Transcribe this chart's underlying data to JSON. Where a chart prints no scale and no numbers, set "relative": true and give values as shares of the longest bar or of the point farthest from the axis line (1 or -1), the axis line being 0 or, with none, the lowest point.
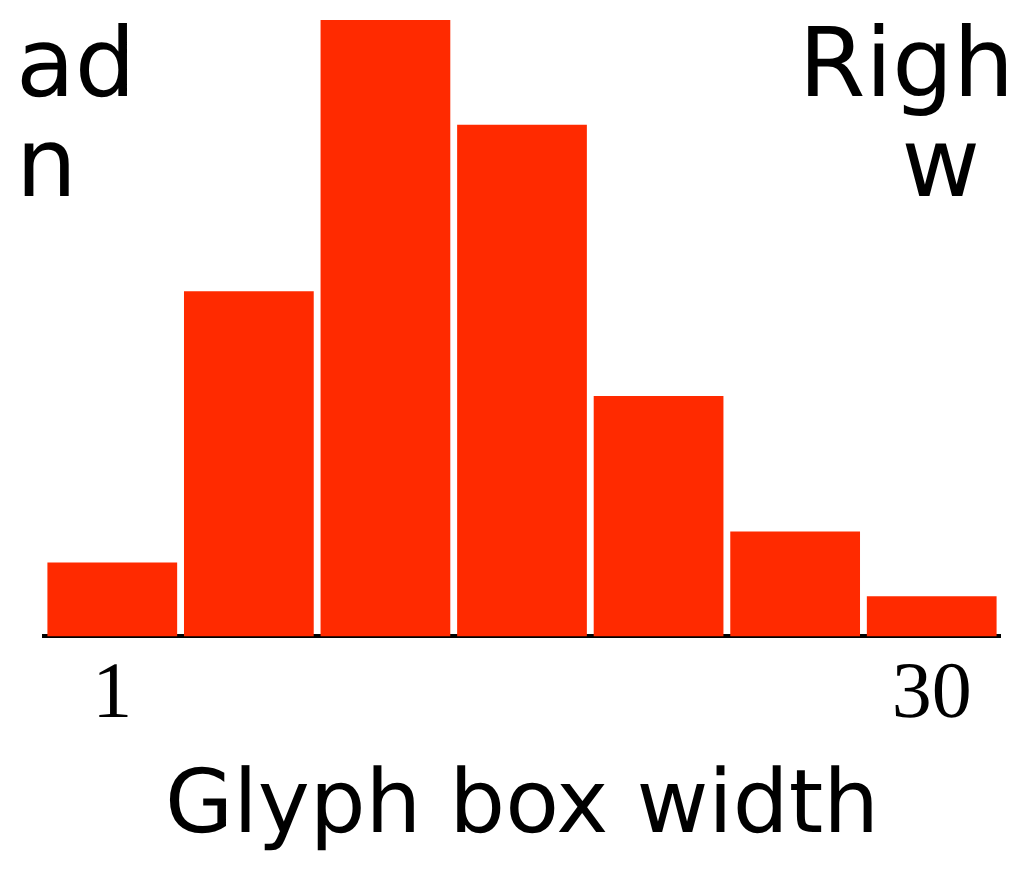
{
  "chart_data": {
    "type": "bar",
    "relative": true,
    "xlabel": "Glyph box width",
    "categories": [
      "1",
      null,
      null,
      null,
      null,
      null,
      "30"
    ],
    "values": [
      0.12,
      0.56,
      1,
      0.83,
      0.39,
      0.17,
      0.065
    ],
    "color": "#ff2a00",
    "grid": false,
    "legend": false,
    "annotations": [
      "ad",
      "n",
      "Righ",
      "w"
    ]
  }
}
